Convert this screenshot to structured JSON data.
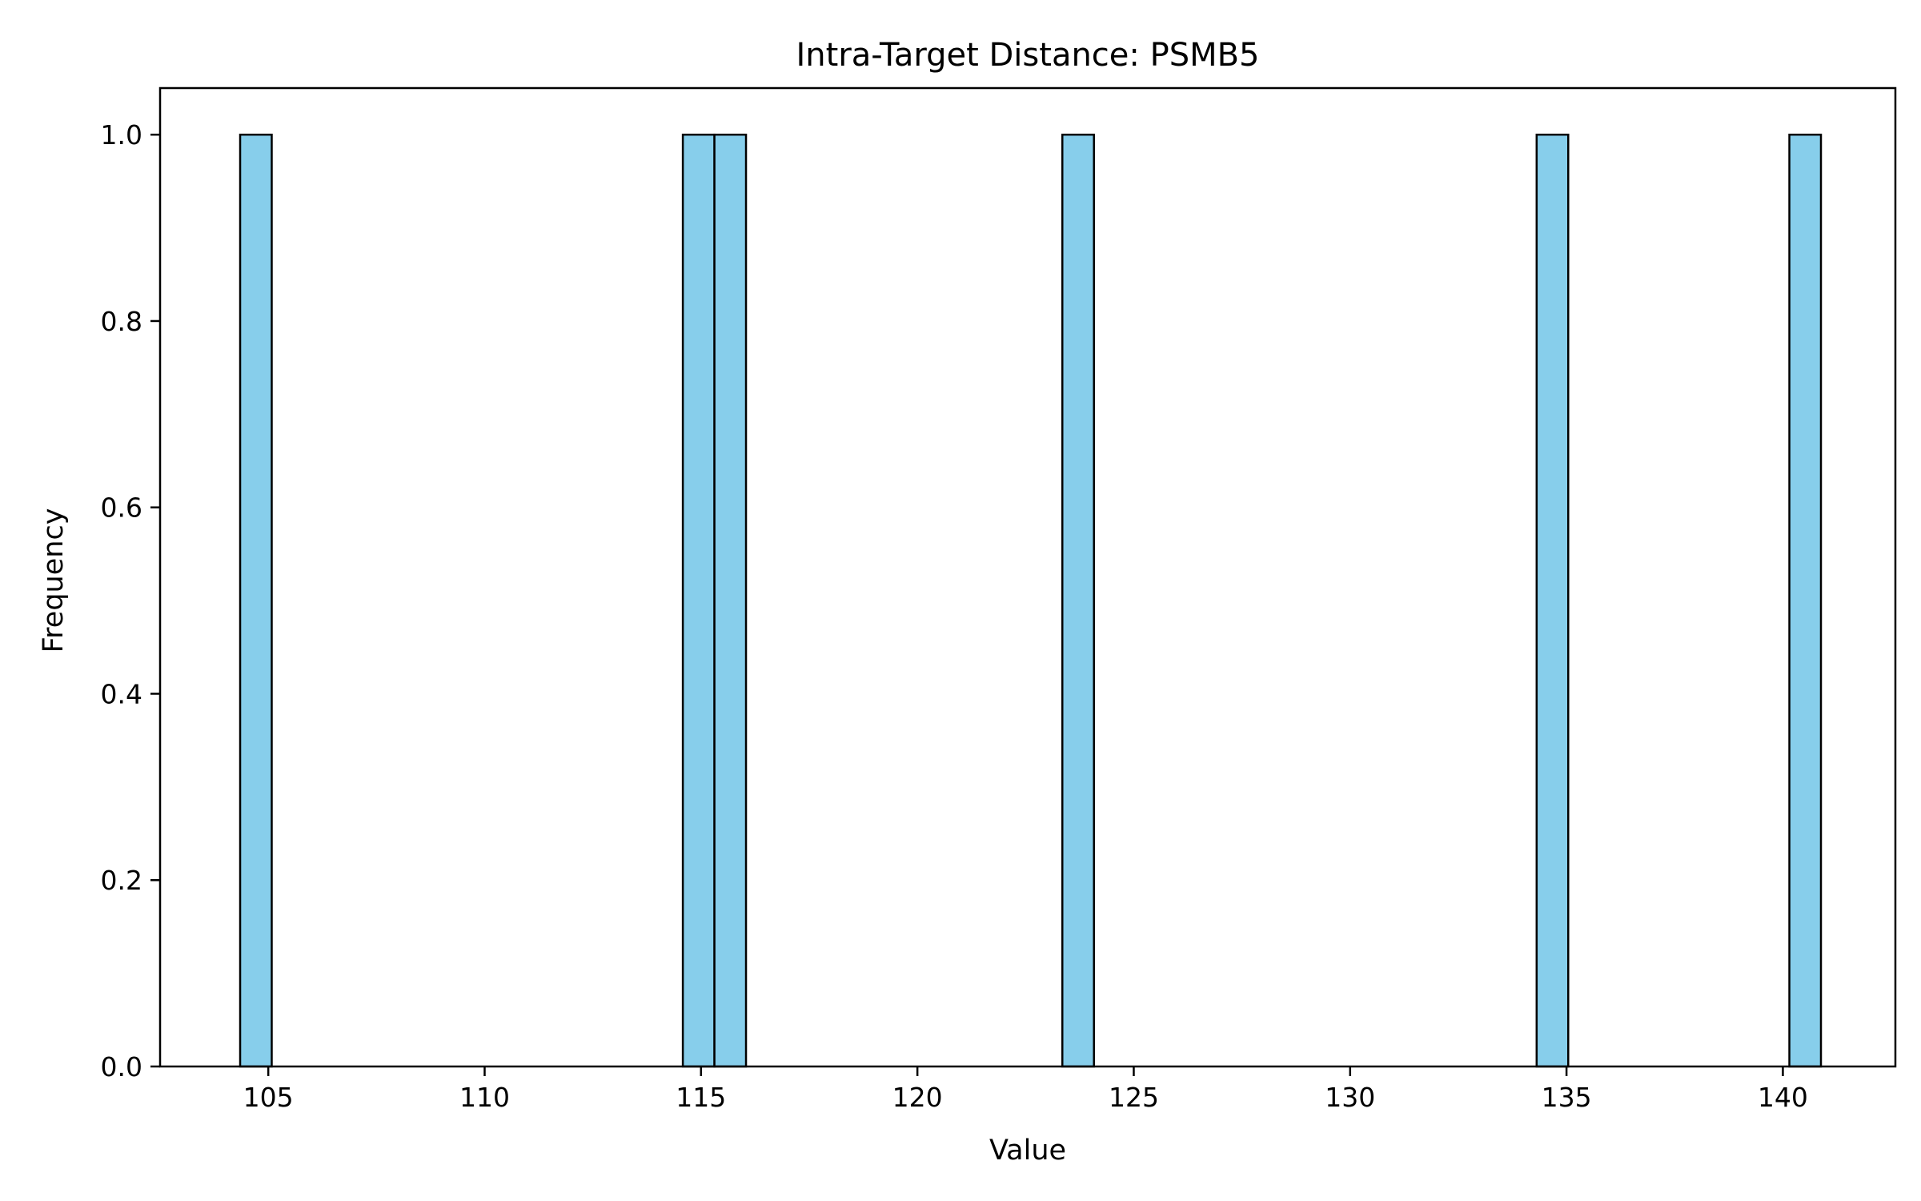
{
  "chart_data": {
    "type": "bar",
    "title": "Intra-Target Distance: PSMB5",
    "xlabel": "Value",
    "ylabel": "Frequency",
    "xlim": [
      102.5,
      142.6
    ],
    "ylim": [
      0.0,
      1.05
    ],
    "x_ticks": [
      105,
      110,
      115,
      120,
      125,
      130,
      135,
      140
    ],
    "x_tick_labels": [
      "105",
      "110",
      "115",
      "120",
      "125",
      "130",
      "135",
      "140"
    ],
    "y_ticks": [
      0.0,
      0.2,
      0.4,
      0.6,
      0.8,
      1.0
    ],
    "y_tick_labels": [
      "0.0",
      "0.2",
      "0.4",
      "0.6",
      "0.8",
      "1.0"
    ],
    "bins": [
      {
        "start": 104.35,
        "end": 105.08,
        "count": 1
      },
      {
        "start": 114.58,
        "end": 115.31,
        "count": 1
      },
      {
        "start": 115.31,
        "end": 116.04,
        "count": 1
      },
      {
        "start": 123.35,
        "end": 124.08,
        "count": 1
      },
      {
        "start": 134.31,
        "end": 135.04,
        "count": 1
      },
      {
        "start": 140.15,
        "end": 140.88,
        "count": 1
      }
    ],
    "bar_color": "#87CEEB",
    "edge_color": "#000000",
    "grid": false,
    "legend": "none"
  }
}
